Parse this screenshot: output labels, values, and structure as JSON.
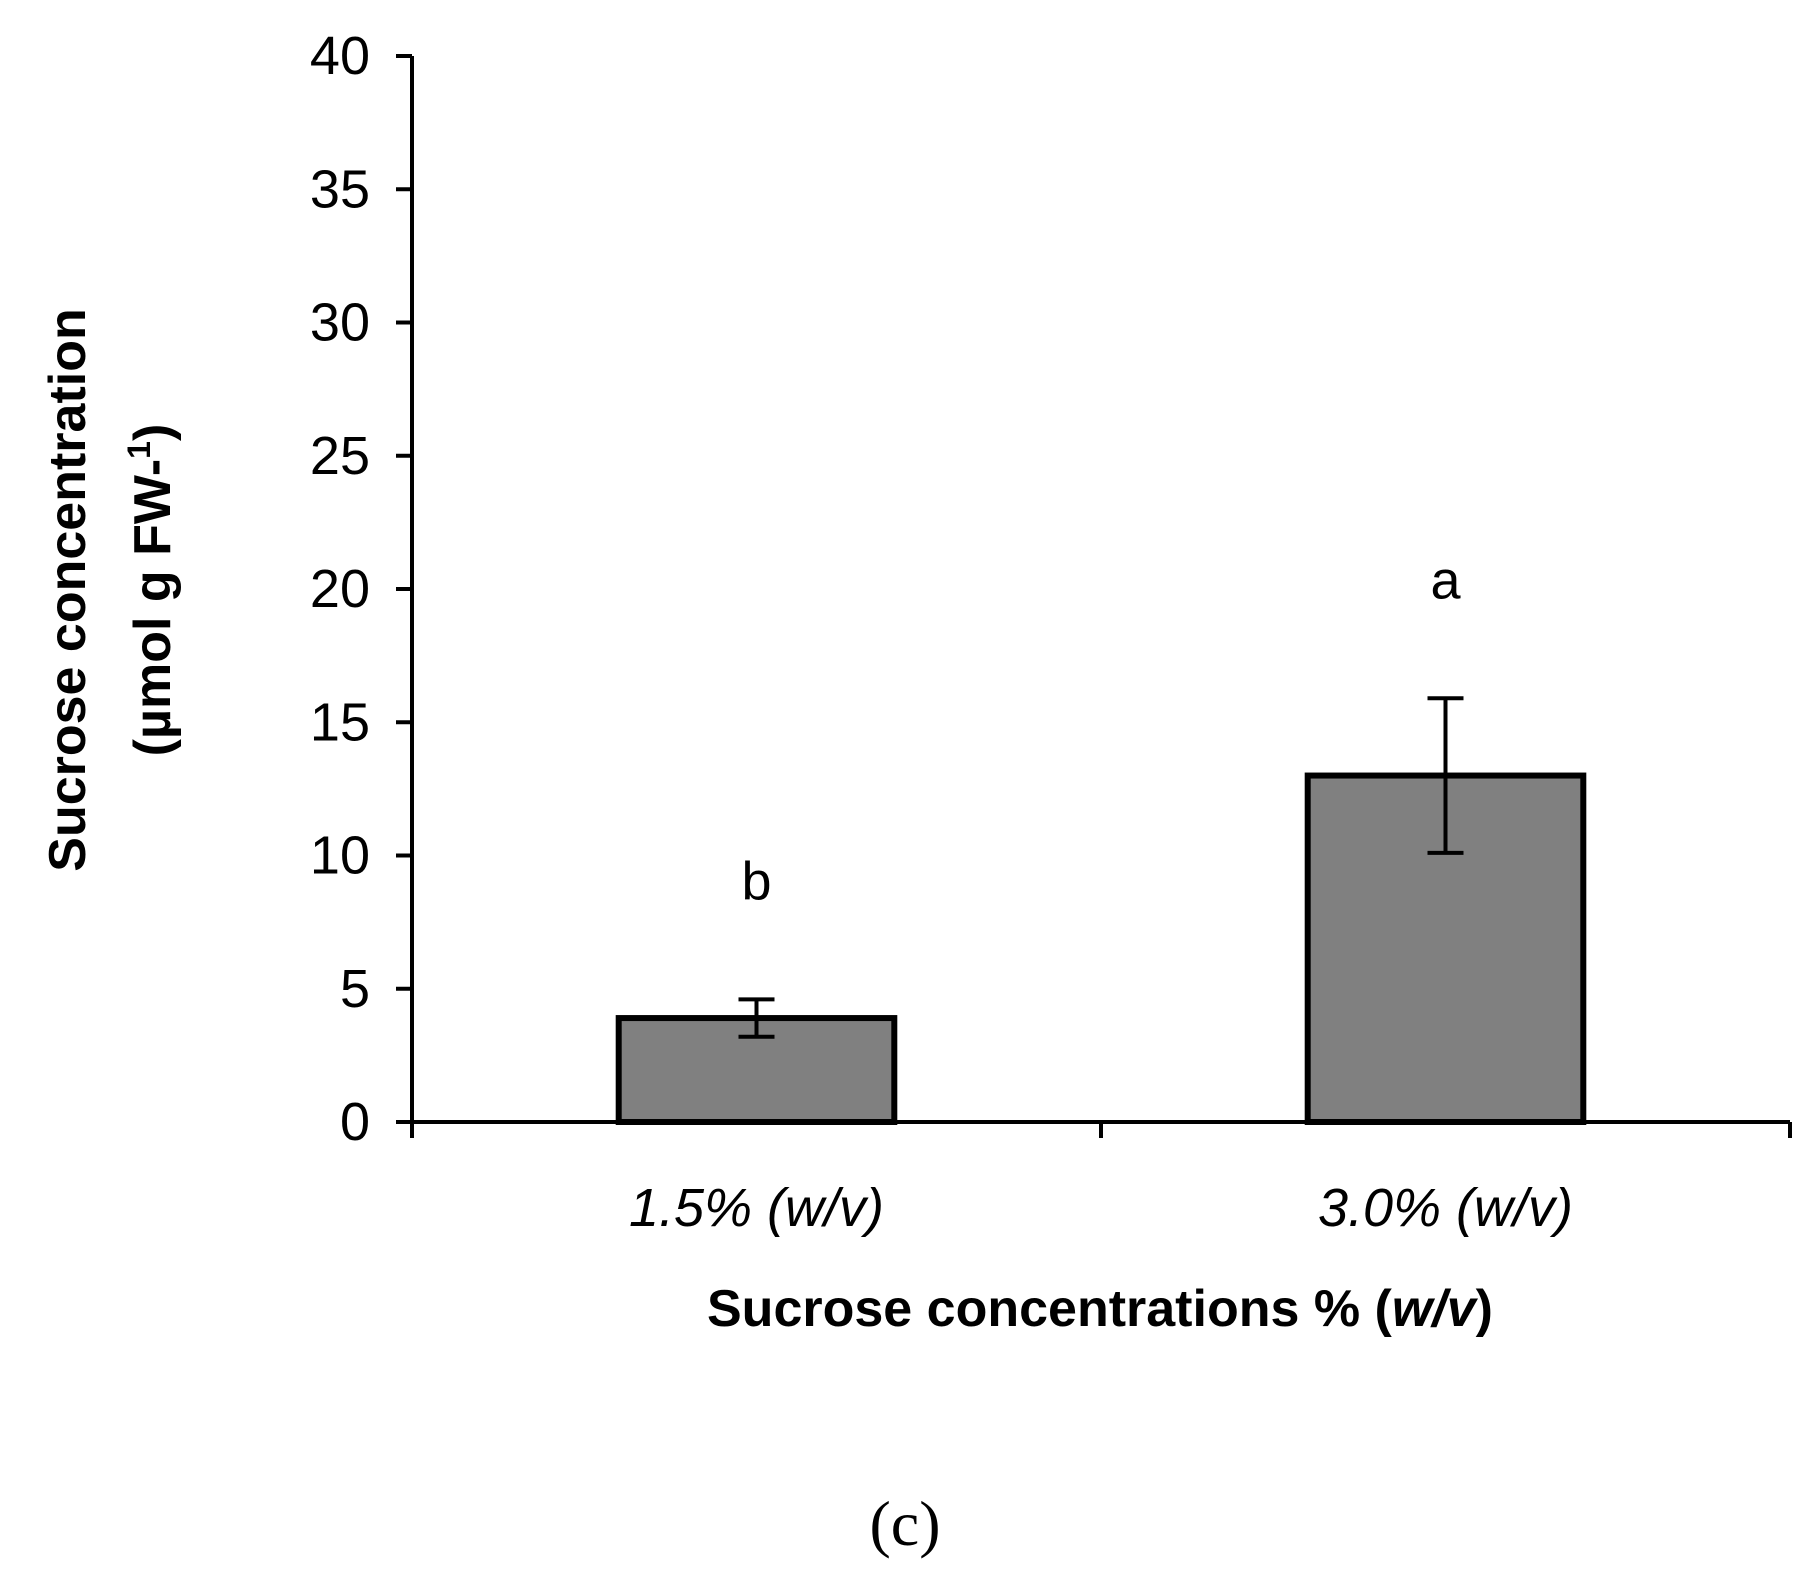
{
  "chart_data": {
    "type": "bar",
    "categories": [
      "1.5% (w/v)",
      "3.0% (w/v)"
    ],
    "values": [
      3.9,
      13.0
    ],
    "errors": [
      0.7,
      2.9
    ],
    "significance_letters": [
      "b",
      "a"
    ],
    "ylabel_line1": "Sucrose concentration",
    "ylabel_line2": "(µmol g FW-",
    "ylabel_superscript": "1",
    "ylabel_close": ")",
    "xlabel_main": "Sucrose  concentrations % (",
    "xlabel_italic": "w/v",
    "xlabel_close": ")",
    "ylim": [
      0,
      40
    ],
    "yticks": [
      0,
      5,
      10,
      15,
      20,
      25,
      30,
      35,
      40
    ],
    "grid": false,
    "colors": {
      "bar_fill": "#808080",
      "bar_stroke": "#000000",
      "axis": "#000000"
    }
  },
  "panel_label": "(c)"
}
